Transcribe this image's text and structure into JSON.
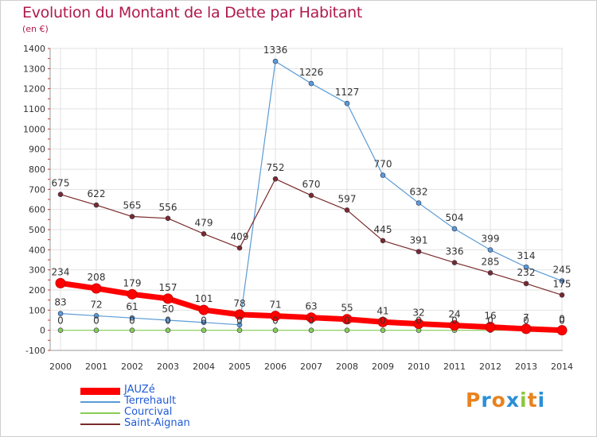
{
  "title": "Evolution du Montant de la Dette par Habitant",
  "subtitle": "(en €)",
  "logo_text": "Proxiti",
  "logo_colors": [
    "#e8831f",
    "#2a8fd6",
    "#e8831f",
    "#2a8fd6",
    "#8cc63f",
    "#e8831f",
    "#2a8fd6"
  ],
  "chart_data": {
    "type": "line",
    "x": [
      2000,
      2001,
      2002,
      2003,
      2004,
      2005,
      2006,
      2007,
      2008,
      2009,
      2010,
      2011,
      2012,
      2013,
      2014
    ],
    "ylim": [
      -100,
      1400
    ],
    "yticks": [
      -100,
      0,
      100,
      200,
      300,
      400,
      500,
      600,
      700,
      800,
      900,
      1000,
      1100,
      1200,
      1300,
      1400
    ],
    "grid": true,
    "legend_position": "bottom-left",
    "series": [
      {
        "name": "JAUZé",
        "color": "#ff0000",
        "values": [
          234,
          208,
          179,
          157,
          101,
          78,
          71,
          63,
          55,
          41,
          32,
          24,
          16,
          7,
          0
        ],
        "labels": [
          "234",
          "208",
          "179",
          "157",
          "101",
          "78",
          "71",
          "63",
          "55",
          "41",
          "32",
          "24",
          "16",
          "7",
          "0"
        ]
      },
      {
        "name": "Terrehault",
        "color": "#5a9bd5",
        "values": [
          83,
          72,
          61,
          50,
          39,
          27,
          1336,
          1226,
          1127,
          770,
          632,
          504,
          399,
          314,
          245
        ],
        "labels": [
          "83",
          "72",
          "61",
          "50",
          "",
          "",
          "1336",
          "1226",
          "1127",
          "770",
          "632",
          "504",
          "399",
          "314",
          "245"
        ]
      },
      {
        "name": "Courcival",
        "color": "#88cc55",
        "values": [
          0,
          0,
          0,
          0,
          0,
          0,
          0,
          0,
          0,
          0,
          0,
          0,
          0,
          0,
          0
        ],
        "labels": [
          "0",
          "0",
          "0",
          "0",
          "0",
          "0",
          "0",
          "0",
          "0",
          "0",
          "0",
          "0",
          "0",
          "0",
          "0"
        ]
      },
      {
        "name": "Saint-Aignan",
        "color": "#7a2a2a",
        "values": [
          675,
          622,
          565,
          556,
          479,
          409,
          752,
          670,
          597,
          445,
          391,
          336,
          285,
          232,
          175
        ],
        "labels": [
          "675",
          "622",
          "565",
          "556",
          "479",
          "409",
          "752",
          "670",
          "597",
          "445",
          "391",
          "336",
          "285",
          "232",
          "175"
        ]
      }
    ]
  }
}
